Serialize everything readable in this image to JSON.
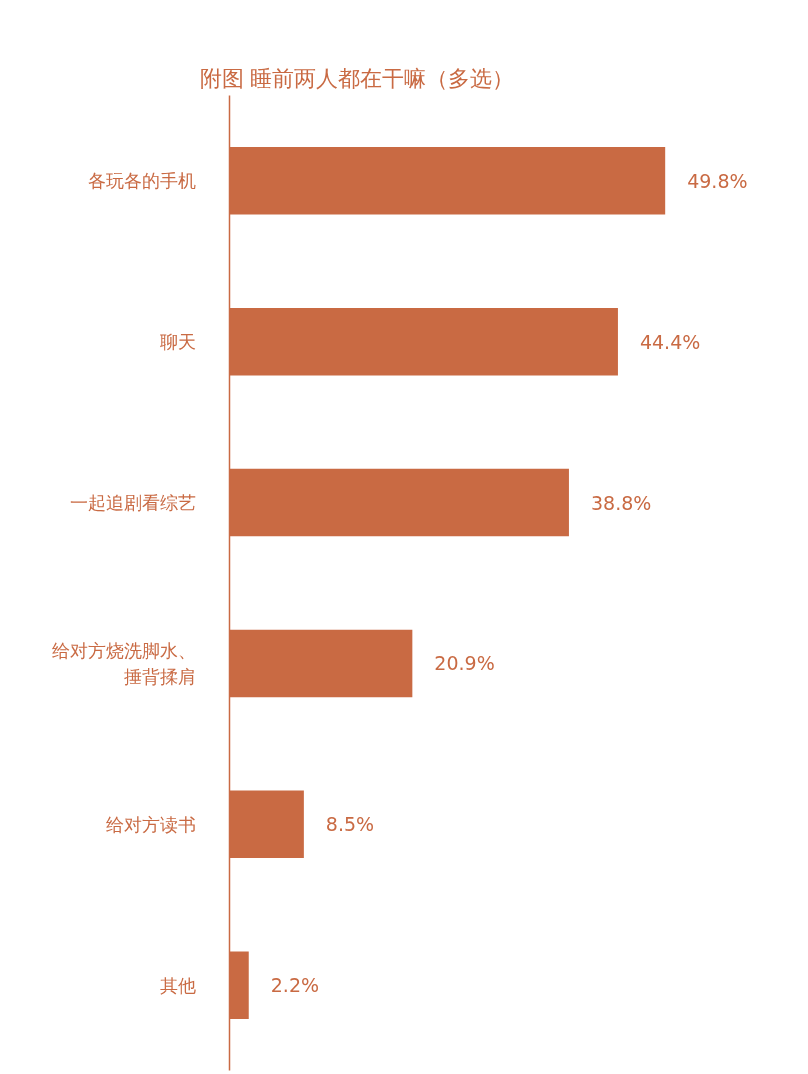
{
  "chart_data": {
    "type": "bar",
    "orientation": "horizontal",
    "title": "附图  睡前两人都在干嘛（多选）",
    "categories": [
      "各玩各的手机",
      "聊天",
      "一起追剧看综艺",
      "给对方烧洗脚水、捶背揉肩",
      "给对方读书",
      "其他"
    ],
    "values": [
      49.8,
      44.4,
      38.8,
      20.9,
      8.5,
      2.2
    ],
    "value_labels": [
      "49.8%",
      "44.4%",
      "38.8%",
      "20.9%",
      "8.5%",
      "2.2%"
    ],
    "color": "#c96a43",
    "grid": false
  }
}
